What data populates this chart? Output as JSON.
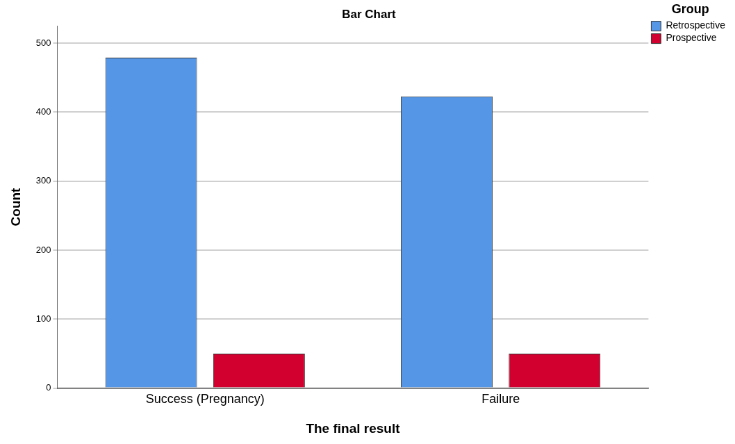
{
  "chart_data": {
    "type": "bar",
    "title": "Bar Chart",
    "xlabel": "The final result",
    "ylabel": "Count",
    "legend_title": "Group",
    "categories": [
      "Success (Pregnancy)",
      "Failure"
    ],
    "series": [
      {
        "name": "Retrospective",
        "color": "#5596e6",
        "values": [
          479,
          423
        ]
      },
      {
        "name": "Prospective",
        "color": "#d2002f",
        "values": [
          50,
          50
        ]
      }
    ],
    "ylim": [
      0,
      525
    ],
    "yticks": [
      0,
      100,
      200,
      300,
      400,
      500
    ],
    "grid": "y",
    "legend": "top right"
  }
}
